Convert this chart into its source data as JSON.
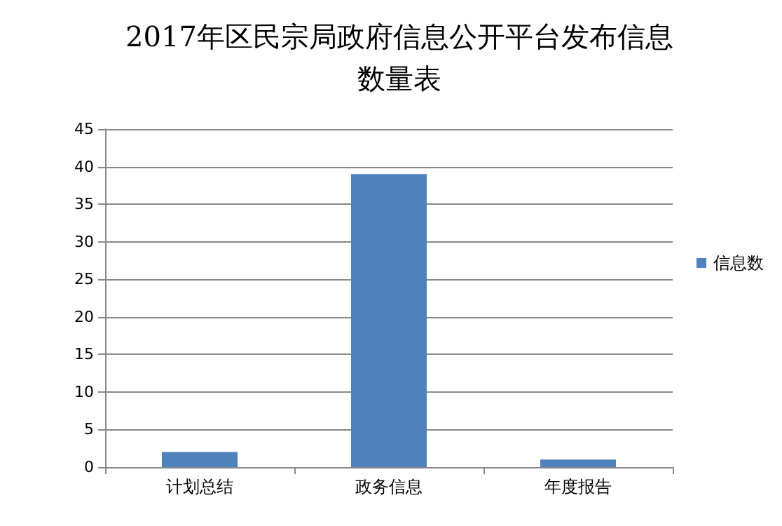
{
  "chart_data": {
    "type": "bar",
    "title": "2017年区民宗局政府信息公开平台发布信息数量表",
    "categories": [
      "计划总结",
      "政务信息",
      "年度报告"
    ],
    "series": [
      {
        "name": "信息数",
        "color": "#4f81bd",
        "values": [
          2,
          39,
          1
        ]
      }
    ],
    "ylim": [
      0,
      45
    ],
    "yticks": [
      0,
      5,
      10,
      15,
      20,
      25,
      30,
      35,
      40,
      45
    ],
    "grid": "y",
    "legend": "right"
  }
}
